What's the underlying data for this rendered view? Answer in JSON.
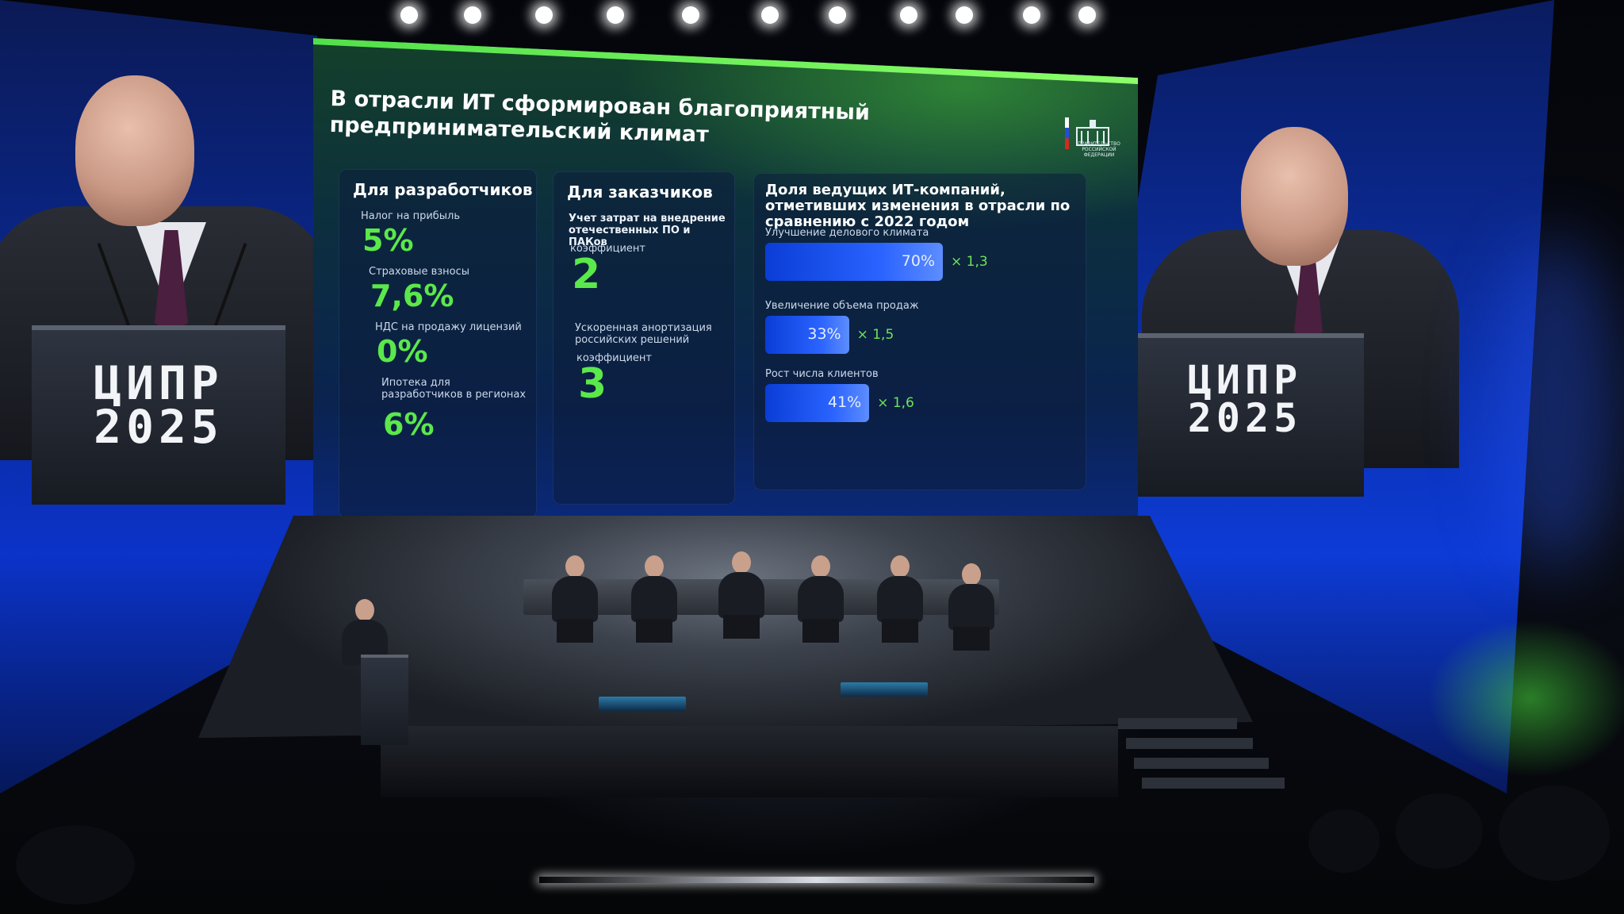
{
  "slide": {
    "title_line1": "В отрасли ИТ сформирован благоприятный",
    "title_line2": "предпринимательский климат",
    "emblem_text": "ПРАВИТЕЛЬСТВО РОССИЙСКОЙ ФЕДЕРАЦИИ",
    "developers": {
      "title": "Для разработчиков",
      "items": [
        {
          "label": "Налог на прибыль",
          "value": "5%"
        },
        {
          "label": "Страховые взносы",
          "value": "7,6%"
        },
        {
          "label": "НДС на продажу лицензий",
          "value": "0%"
        },
        {
          "label": "Ипотека для разработчиков в регионах",
          "value": "6%"
        }
      ]
    },
    "customers": {
      "title": "Для заказчиков",
      "items": [
        {
          "label": "Учет затрат на внедрение отечественных ПО и ПАКов",
          "sub": "коэффициент",
          "value": "2"
        },
        {
          "label": "Ускоренная анортизация российских решений",
          "sub": "коэффициент",
          "value": "3"
        }
      ]
    },
    "companies": {
      "title": "Доля ведущих ИТ-компаний, отметивших изменения в отрасли по сравнению с 2022 годом",
      "items": [
        {
          "label": "Улучшение делового климата",
          "percent": 70,
          "value_text": "70%",
          "multiplier": "× 1,3"
        },
        {
          "label": "Увеличение объема продаж",
          "percent": 33,
          "value_text": "33%",
          "multiplier": "× 1,5"
        },
        {
          "label": "Рост числа клиентов",
          "percent": 41,
          "value_text": "41%",
          "multiplier": "× 1,6"
        }
      ]
    }
  },
  "podium_logo": {
    "line1": "ЦИПР",
    "line2": "2025"
  },
  "colors": {
    "accent_green": "#5be84b",
    "bar_blue": "#2a63ff",
    "screen_blue": "#0b33c8"
  }
}
